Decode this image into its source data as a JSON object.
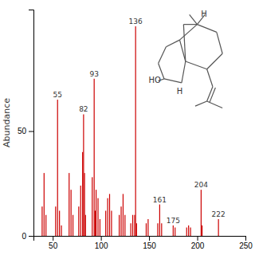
{
  "chart_data": {
    "type": "bar",
    "ylabel": "Abundance",
    "color": "#cc0000",
    "x": [
      39,
      41,
      43,
      53,
      55,
      57,
      59,
      67,
      69,
      71,
      77,
      79,
      81,
      82,
      83,
      84,
      91,
      93,
      94,
      95,
      97,
      99,
      105,
      107,
      109,
      111,
      119,
      121,
      123,
      125,
      131,
      133,
      135,
      136,
      137,
      147,
      149,
      159,
      161,
      163,
      175,
      177,
      189,
      191,
      193,
      204,
      205,
      222
    ],
    "values": [
      14,
      30,
      10,
      14,
      65,
      12,
      5,
      30,
      22,
      10,
      14,
      24,
      40,
      58,
      30,
      10,
      28,
      75,
      12,
      22,
      18,
      8,
      12,
      18,
      20,
      12,
      10,
      14,
      20,
      10,
      6,
      10,
      10,
      100,
      6,
      6,
      8,
      6,
      15,
      6,
      5,
      4,
      4,
      5,
      4,
      22,
      5,
      8
    ],
    "xlim": [
      30,
      250
    ],
    "xticks": [
      50,
      100,
      150,
      200,
      250
    ],
    "ylim": [
      0,
      108
    ],
    "yticks": [
      0,
      50
    ],
    "annotations": [
      {
        "text": "55",
        "x": 55,
        "y": 65
      },
      {
        "text": "82",
        "x": 82,
        "y": 58
      },
      {
        "text": "93",
        "x": 93,
        "y": 75
      },
      {
        "text": "136",
        "x": 136,
        "y": 100
      },
      {
        "text": "161",
        "x": 161,
        "y": 15
      },
      {
        "text": "204",
        "x": 204,
        "y": 22
      },
      {
        "text": "175",
        "x": 175,
        "y": 5
      },
      {
        "text": "222",
        "x": 222,
        "y": 8
      },
      {
        "text": "HO"
      },
      {
        "text": "H"
      },
      {
        "text": "H"
      }
    ]
  }
}
